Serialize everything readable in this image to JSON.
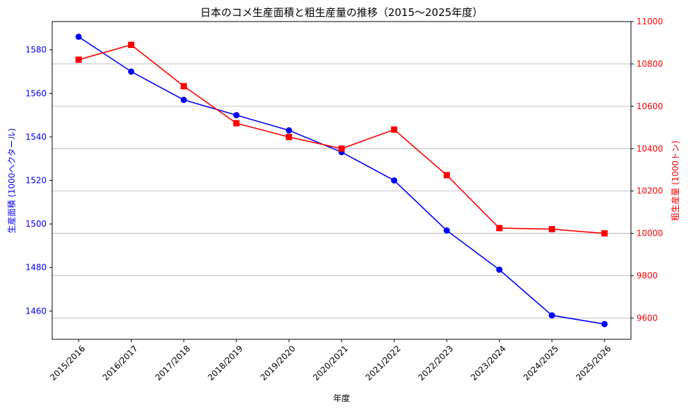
{
  "chart_data": {
    "type": "line",
    "title": "日本のコメ生産面積と粗生産量の推移（2015〜2025年度）",
    "xlabel": "年度",
    "categories": [
      "2015/2016",
      "2016/2017",
      "2017/2018",
      "2018/2019",
      "2019/2020",
      "2020/2021",
      "2021/2022",
      "2022/2023",
      "2023/2024",
      "2024/2025",
      "2025/2026"
    ],
    "grid": "horizontal lines at right-axis ticks",
    "left_axis": {
      "label": "生産面積 (1000ヘクタール)",
      "color": "#0000ff",
      "ylim": [
        1447,
        1593
      ],
      "ticks": [
        1460,
        1480,
        1500,
        1520,
        1540,
        1560,
        1580
      ]
    },
    "right_axis": {
      "label": "粗生産量 (1000トン)",
      "color": "#ff0000",
      "ylim": [
        9500,
        11000
      ],
      "ticks": [
        9600,
        9800,
        10000,
        10200,
        10400,
        10600,
        10800,
        11000
      ]
    },
    "series": [
      {
        "axis": "left",
        "color": "#0000ff",
        "marker": "circle",
        "values": [
          1586,
          1570,
          1557,
          1550,
          1543,
          1533,
          1520,
          1497,
          1479,
          1458,
          1454
        ]
      },
      {
        "axis": "right",
        "color": "#ff0000",
        "marker": "square",
        "values": [
          10820,
          10890,
          10695,
          10520,
          10455,
          10400,
          10490,
          10275,
          10025,
          10020,
          10000
        ]
      }
    ]
  }
}
